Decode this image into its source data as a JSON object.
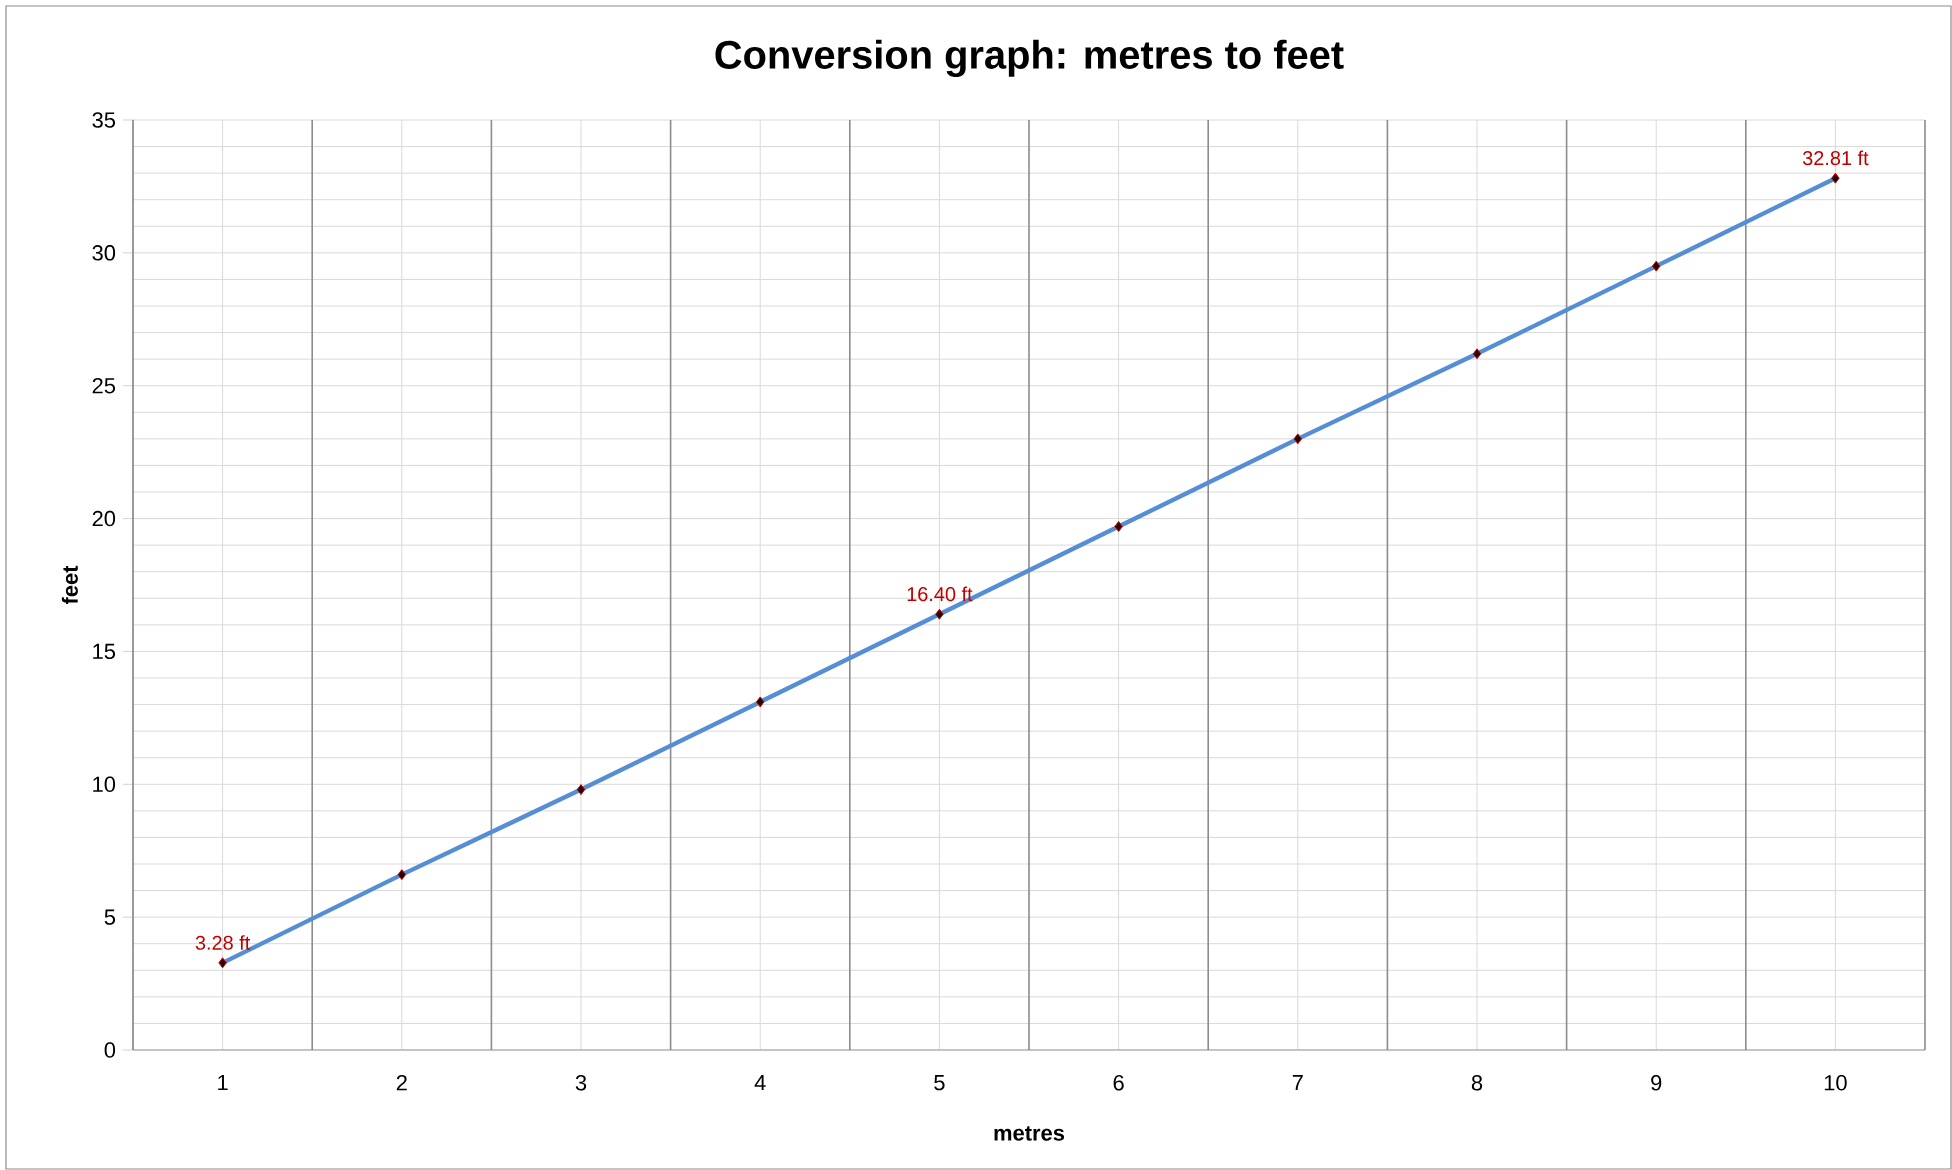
{
  "chart_data": {
    "type": "line",
    "title": "Conversion graph: metres to feet",
    "xlabel": "metres",
    "ylabel": "feet",
    "categories": [
      "1",
      "2",
      "3",
      "4",
      "5",
      "6",
      "7",
      "8",
      "9",
      "10"
    ],
    "values": [
      3.28,
      6.6,
      9.8,
      13.1,
      16.4,
      19.7,
      23.0,
      26.2,
      29.5,
      32.81
    ],
    "value_labels": [
      "3.28 ft",
      null,
      null,
      null,
      "16.40 ft",
      null,
      null,
      null,
      null,
      "32.81 ft"
    ],
    "color": "#558ed5",
    "marker": "diamond",
    "line_style": "solid",
    "ylim": [
      0,
      35
    ],
    "yticks": [
      0,
      5,
      10,
      15,
      20,
      25,
      30,
      35
    ],
    "grid": true
  }
}
